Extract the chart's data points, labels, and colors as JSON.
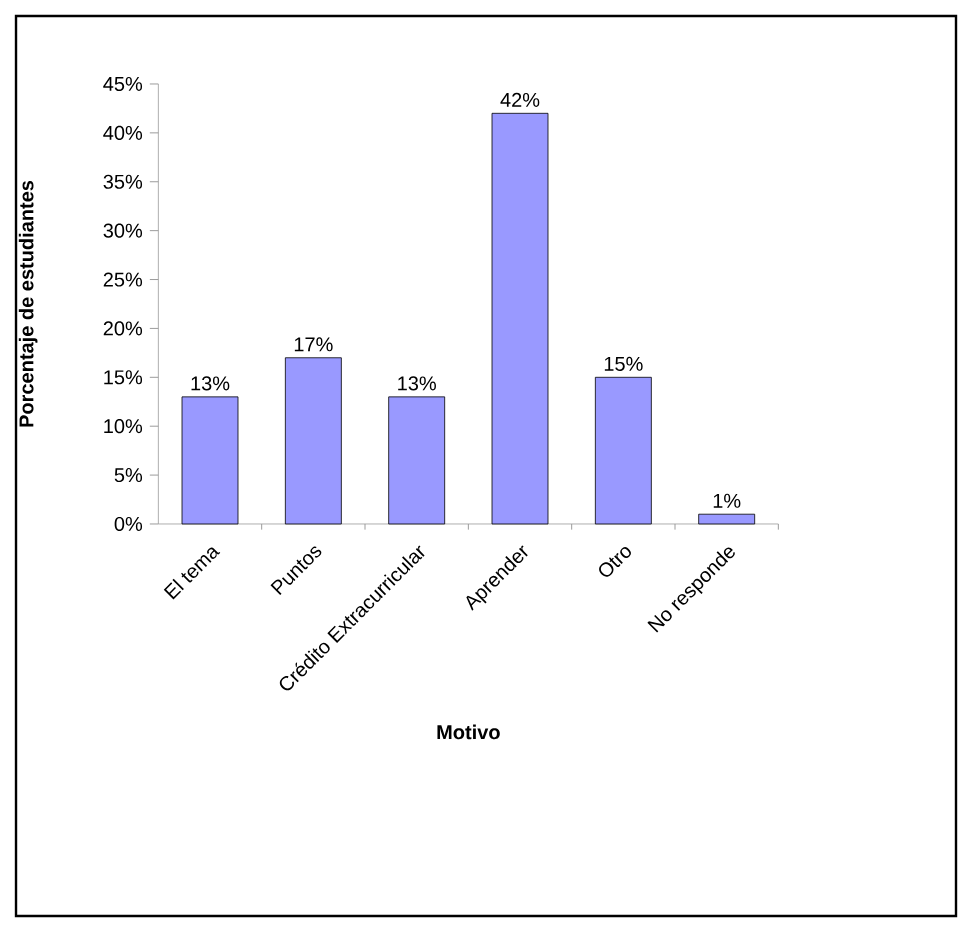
{
  "chart_data": {
    "type": "bar",
    "xlabel": "Motivo",
    "ylabel": "Porcentaje de estudiantes",
    "categories": [
      "El tema",
      "Puntos",
      "Crédito Extracurricular",
      "Aprender",
      "Otro",
      "No responde"
    ],
    "values": [
      13,
      17,
      13,
      42,
      15,
      1
    ],
    "value_labels": [
      "13%",
      "17%",
      "13%",
      "42%",
      "15%",
      "1%"
    ],
    "color": "#9999ff",
    "ylim": [
      0,
      45
    ],
    "yticks": [
      {
        "value": 0,
        "label": "0%"
      },
      {
        "value": 5,
        "label": "5%"
      },
      {
        "value": 10,
        "label": "10%"
      },
      {
        "value": 15,
        "label": "15%"
      },
      {
        "value": 20,
        "label": "20%"
      },
      {
        "value": 25,
        "label": "25%"
      },
      {
        "value": 30,
        "label": "30%"
      },
      {
        "value": 35,
        "label": "35%"
      },
      {
        "value": 40,
        "label": "40%"
      },
      {
        "value": 45,
        "label": "45%"
      }
    ],
    "grid": false
  }
}
